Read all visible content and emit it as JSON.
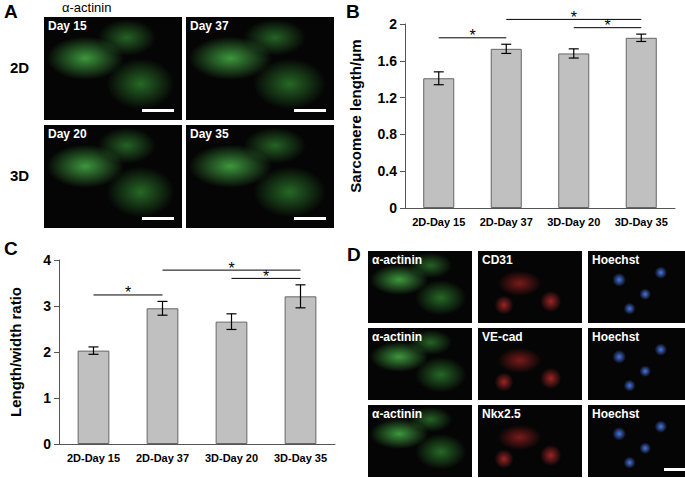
{
  "panels": {
    "A": {
      "label": "A",
      "title": "α-actinin",
      "rows": [
        {
          "label": "2D",
          "tiles": [
            "Day 15",
            "Day 37"
          ]
        },
        {
          "label": "3D",
          "tiles": [
            "Day 20",
            "Day 35"
          ]
        }
      ]
    },
    "D": {
      "label": "D",
      "rows": [
        [
          "α-actinin",
          "CD31",
          "Hoechst"
        ],
        [
          "α-actinin",
          "VE-cad",
          "Hoechst"
        ],
        [
          "α-actinin",
          "Nkx2.5",
          "Hoechst"
        ]
      ]
    }
  },
  "chart_data": [
    {
      "panel": "B",
      "type": "bar",
      "y_label": "Sarcomere length/μm",
      "categories": [
        "2D-Day 15",
        "2D-Day 37",
        "3D-Day 20",
        "3D-Day 35"
      ],
      "values": [
        1.41,
        1.73,
        1.68,
        1.85
      ],
      "errors": [
        0.07,
        0.05,
        0.05,
        0.04
      ],
      "color": "#c0c0c0",
      "ylim": [
        0,
        2
      ],
      "yticks": [
        0,
        0.4,
        0.8,
        1.2,
        1.6,
        2
      ],
      "grid": false,
      "annotations": [
        {
          "from": "2D-Day 15",
          "to": "2D-Day 37",
          "text": "*"
        },
        {
          "from": "2D-Day 37",
          "to": "3D-Day 35",
          "text": "*"
        },
        {
          "from": "3D-Day 20",
          "to": "3D-Day 35",
          "text": "*"
        }
      ]
    },
    {
      "panel": "C",
      "type": "bar",
      "y_label": "Length/width ratio",
      "categories": [
        "2D-Day 15",
        "2D-Day 37",
        "3D-Day 20",
        "3D-Day 35"
      ],
      "values": [
        2.03,
        2.95,
        2.66,
        3.21
      ],
      "errors": [
        0.08,
        0.15,
        0.17,
        0.25
      ],
      "color": "#c0c0c0",
      "ylim": [
        0,
        4
      ],
      "yticks": [
        0,
        1,
        2,
        3,
        4
      ],
      "grid": false,
      "annotations": [
        {
          "from": "2D-Day 15",
          "to": "2D-Day 37",
          "text": "*"
        },
        {
          "from": "2D-Day 37",
          "to": "3D-Day 35",
          "text": "*"
        },
        {
          "from": "3D-Day 20",
          "to": "3D-Day 35",
          "text": "*"
        }
      ]
    }
  ]
}
